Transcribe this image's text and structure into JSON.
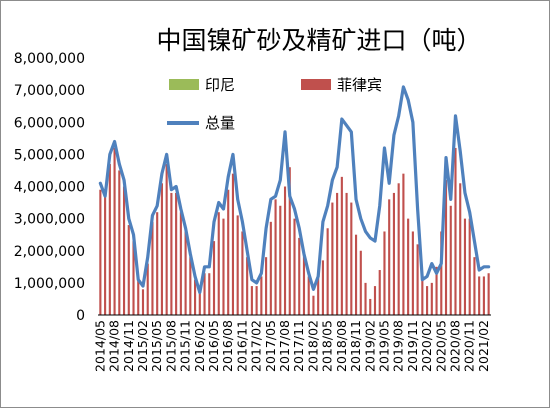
{
  "chart_data": {
    "type": "bar",
    "title": "中国镍矿砂及精矿进口（吨）",
    "xlabel": "",
    "ylabel": "",
    "ylim": [
      0,
      8000000
    ],
    "y_ticks": [
      "0",
      "1,000,000",
      "2,000,000",
      "3,000,000",
      "4,000,000",
      "5,000,000",
      "6,000,000",
      "7,000,000",
      "8,000,000"
    ],
    "x_tick_labels": [
      "2014/05",
      "2014/08",
      "2014/11",
      "2015/02",
      "2015/05",
      "2015/08",
      "2015/11",
      "2016/02",
      "2016/05",
      "2016/08",
      "2016/11",
      "2017/02",
      "2017/05",
      "2017/08",
      "2017/11",
      "2018/02",
      "2018/05",
      "2018/08",
      "2018/11",
      "2019/02",
      "2019/05",
      "2019/08",
      "2019/11",
      "2020/02",
      "2020/05",
      "2020/08",
      "2020/11",
      "2021/02"
    ],
    "legend_position": "top",
    "categories": [
      "2014/05",
      "2014/06",
      "2014/07",
      "2014/08",
      "2014/09",
      "2014/10",
      "2014/11",
      "2014/12",
      "2015/01",
      "2015/02",
      "2015/03",
      "2015/04",
      "2015/05",
      "2015/06",
      "2015/07",
      "2015/08",
      "2015/09",
      "2015/10",
      "2015/11",
      "2015/12",
      "2016/01",
      "2016/02",
      "2016/03",
      "2016/04",
      "2016/05",
      "2016/06",
      "2016/07",
      "2016/08",
      "2016/09",
      "2016/10",
      "2016/11",
      "2016/12",
      "2017/01",
      "2017/02",
      "2017/03",
      "2017/04",
      "2017/05",
      "2017/06",
      "2017/07",
      "2017/08",
      "2017/09",
      "2017/10",
      "2017/11",
      "2017/12",
      "2018/01",
      "2018/02",
      "2018/03",
      "2018/04",
      "2018/05",
      "2018/06",
      "2018/07",
      "2018/08",
      "2018/09",
      "2018/10",
      "2018/11",
      "2018/12",
      "2019/01",
      "2019/02",
      "2019/03",
      "2019/04",
      "2019/05",
      "2019/06",
      "2019/07",
      "2019/08",
      "2019/09",
      "2019/10",
      "2019/11",
      "2019/12",
      "2020/01",
      "2020/02",
      "2020/03",
      "2020/04",
      "2020/05",
      "2020/06",
      "2020/07",
      "2020/08",
      "2020/09",
      "2020/10",
      "2020/11",
      "2020/12",
      "2021/01",
      "2021/02",
      "2021/03"
    ],
    "series": [
      {
        "name": "印尼",
        "type": "bar",
        "color": "#9bbb59",
        "values": [
          0,
          0,
          0,
          0,
          0,
          0,
          0,
          0,
          0,
          0,
          0,
          0,
          0,
          0,
          0,
          0,
          0,
          0,
          0,
          0,
          0,
          0,
          0,
          0,
          0,
          0,
          0,
          0,
          0,
          0,
          0,
          0,
          0,
          0,
          0,
          0,
          0,
          0,
          0,
          0,
          0,
          0,
          0,
          0,
          0,
          0,
          0,
          0,
          0,
          0,
          0,
          0,
          0,
          0,
          0,
          0,
          0,
          0,
          0,
          0,
          0,
          0,
          0,
          0,
          0,
          0,
          0,
          0,
          0,
          0,
          0,
          0,
          0,
          0,
          0,
          0,
          0,
          0,
          0,
          0,
          0,
          0,
          0
        ]
      },
      {
        "name": "菲律宾",
        "type": "bar",
        "color": "#c0504d",
        "values": [
          3900000,
          3700000,
          4700000,
          5200000,
          4500000,
          4000000,
          2800000,
          2300000,
          1100000,
          800000,
          1600000,
          2900000,
          3200000,
          4100000,
          4700000,
          3800000,
          3800000,
          3200000,
          2600000,
          1800000,
          1100000,
          700000,
          1300000,
          1300000,
          2300000,
          3200000,
          3000000,
          3900000,
          4400000,
          3100000,
          2600000,
          1800000,
          900000,
          900000,
          1200000,
          1800000,
          2900000,
          3600000,
          3400000,
          4000000,
          4600000,
          3000000,
          2400000,
          1900000,
          1200000,
          600000,
          1200000,
          1700000,
          2700000,
          3500000,
          3800000,
          4300000,
          3800000,
          3500000,
          2500000,
          2000000,
          1000000,
          500000,
          900000,
          1400000,
          2600000,
          3600000,
          3800000,
          4100000,
          4400000,
          3000000,
          2600000,
          2200000,
          1100000,
          900000,
          1000000,
          1500000,
          2600000,
          4200000,
          3400000,
          5200000,
          4100000,
          3000000,
          3000000,
          1800000,
          1200000,
          1200000,
          1300000
        ]
      },
      {
        "name": "总量",
        "type": "line",
        "color": "#4f81bd",
        "values": [
          4100000,
          3700000,
          5000000,
          5400000,
          4700000,
          4200000,
          3000000,
          2500000,
          1100000,
          900000,
          1800000,
          3100000,
          3400000,
          4400000,
          5000000,
          3900000,
          4000000,
          3300000,
          2700000,
          1900000,
          1200000,
          700000,
          1500000,
          1500000,
          2900000,
          3500000,
          3300000,
          4300000,
          5000000,
          3600000,
          2900000,
          2000000,
          1100000,
          1000000,
          1300000,
          2700000,
          3600000,
          3700000,
          4200000,
          5700000,
          3700000,
          3300000,
          2700000,
          1900000,
          1300000,
          800000,
          1200000,
          2900000,
          3400000,
          4200000,
          4600000,
          6100000,
          5900000,
          5700000,
          3600000,
          3000000,
          2600000,
          2400000,
          2300000,
          3400000,
          5200000,
          4100000,
          5600000,
          6200000,
          7100000,
          6700000,
          6000000,
          3300000,
          1100000,
          1200000,
          1600000,
          1300000,
          1600000,
          4900000,
          3600000,
          6200000,
          5100000,
          3800000,
          3200000,
          2300000,
          1400000,
          1500000,
          1500000
        ]
      }
    ]
  }
}
